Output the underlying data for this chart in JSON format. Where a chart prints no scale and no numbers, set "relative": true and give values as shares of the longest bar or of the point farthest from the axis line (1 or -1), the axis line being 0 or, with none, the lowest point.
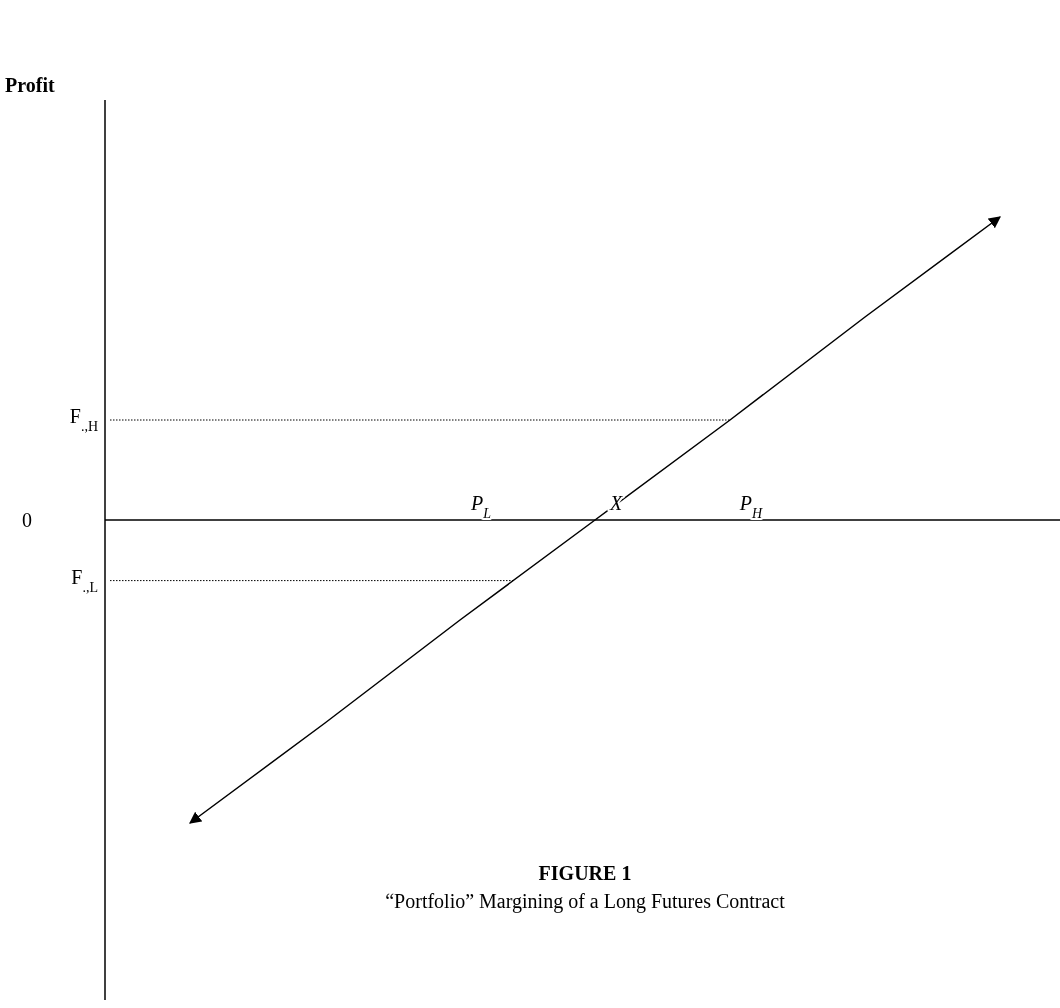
{
  "chart_data": {
    "type": "line",
    "relative": true,
    "title": "FIGURE 1",
    "subtitle": "“Portfolio” Margining of a Long Futures Contract",
    "categories": [
      null,
      null,
      "P$_{L}$",
      "X",
      "P$_{H}$",
      null,
      null
    ],
    "series": [
      {
        "color": "#000000",
        "values": [
          -1,
          -0.67,
          -0.33,
          0,
          0.33,
          0.67,
          1
        ]
      }
    ],
    "ref_lines": [
      {
        "axis": "y",
        "value": 0.33,
        "label": "F$_{.,H}$",
        "line_style": "dotted"
      },
      {
        "axis": "y",
        "value": -0.2,
        "label": "F$_{.,L}$",
        "line_style": "dotted"
      }
    ],
    "annotations": [
      "Profit",
      "0"
    ],
    "marker": "none",
    "line_style": "solid"
  }
}
